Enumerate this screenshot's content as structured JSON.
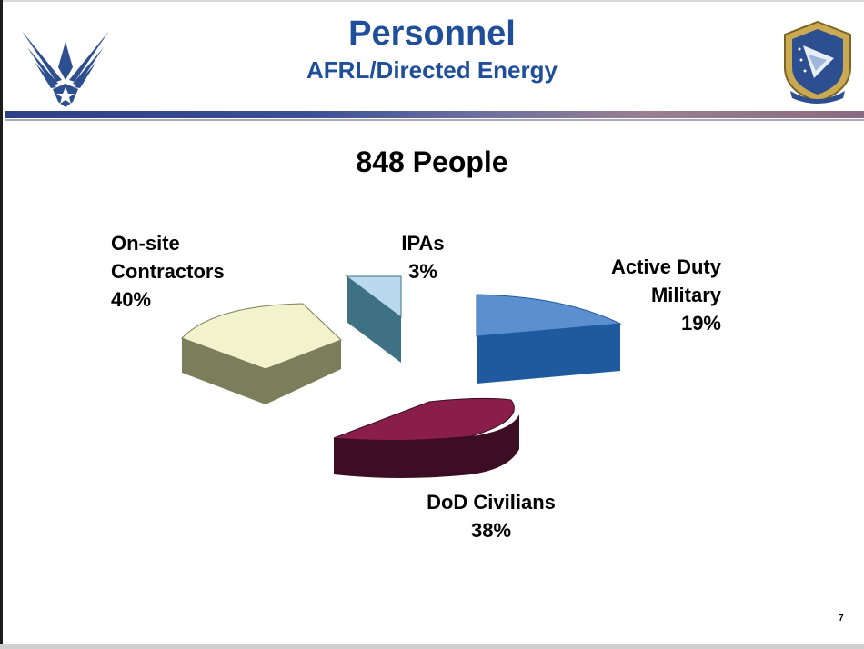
{
  "header": {
    "title": "Personnel",
    "subtitle": "AFRL/Directed Energy"
  },
  "logos": {
    "left": "air-force-wings-logo",
    "right": "afrl-shield-seal"
  },
  "chart_data": {
    "type": "pie",
    "title": "848 People",
    "style": "3d-exploded",
    "slices": [
      {
        "name": "On-site Contractors",
        "label_lines": [
          "On-site",
          "Contractors",
          "40%"
        ],
        "percent": 40,
        "top_color": "#f2f2cc",
        "side_color": "#7c7d5a"
      },
      {
        "name": "IPAs",
        "label_lines": [
          "IPAs",
          "3%"
        ],
        "percent": 3,
        "top_color": "#b9d9ef",
        "side_color": "#3f7185"
      },
      {
        "name": "Active Duty Military",
        "label_lines": [
          "Active Duty",
          "Military",
          "19%"
        ],
        "percent": 19,
        "top_color": "#5b8fd0",
        "side_color": "#1f5a9f"
      },
      {
        "name": "DoD Civilians",
        "label_lines": [
          "DoD Civilians",
          "38%"
        ],
        "percent": 38,
        "top_color": "#8a1e4a",
        "side_color": "#3d0d24"
      }
    ]
  },
  "footer": {
    "page_number": "7"
  }
}
